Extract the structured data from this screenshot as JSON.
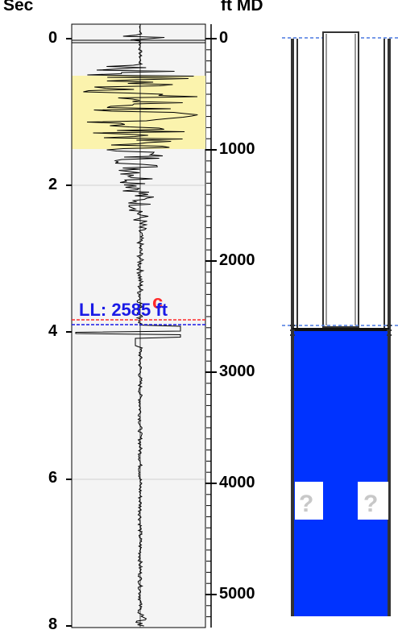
{
  "headers": {
    "time_axis": "Sec",
    "depth_axis": "ft MD"
  },
  "time_ticks": [
    "0",
    "2",
    "4",
    "6",
    "8"
  ],
  "depth_ticks": [
    "0",
    "1000",
    "2000",
    "3000",
    "4000",
    "5000"
  ],
  "liquid_level": {
    "label": "LL: 2585 ft",
    "value_ft": 2585,
    "marker": "c"
  },
  "wellbore": {
    "unknown_markers": [
      "?",
      "?"
    ]
  },
  "colors": {
    "fluid": "#0033ff",
    "highlight_zone": "#fbf3ad",
    "track_bg": "#f4f4f4",
    "label_blue": "#1a1ae6",
    "marker_red": "#ff2a2a"
  }
}
